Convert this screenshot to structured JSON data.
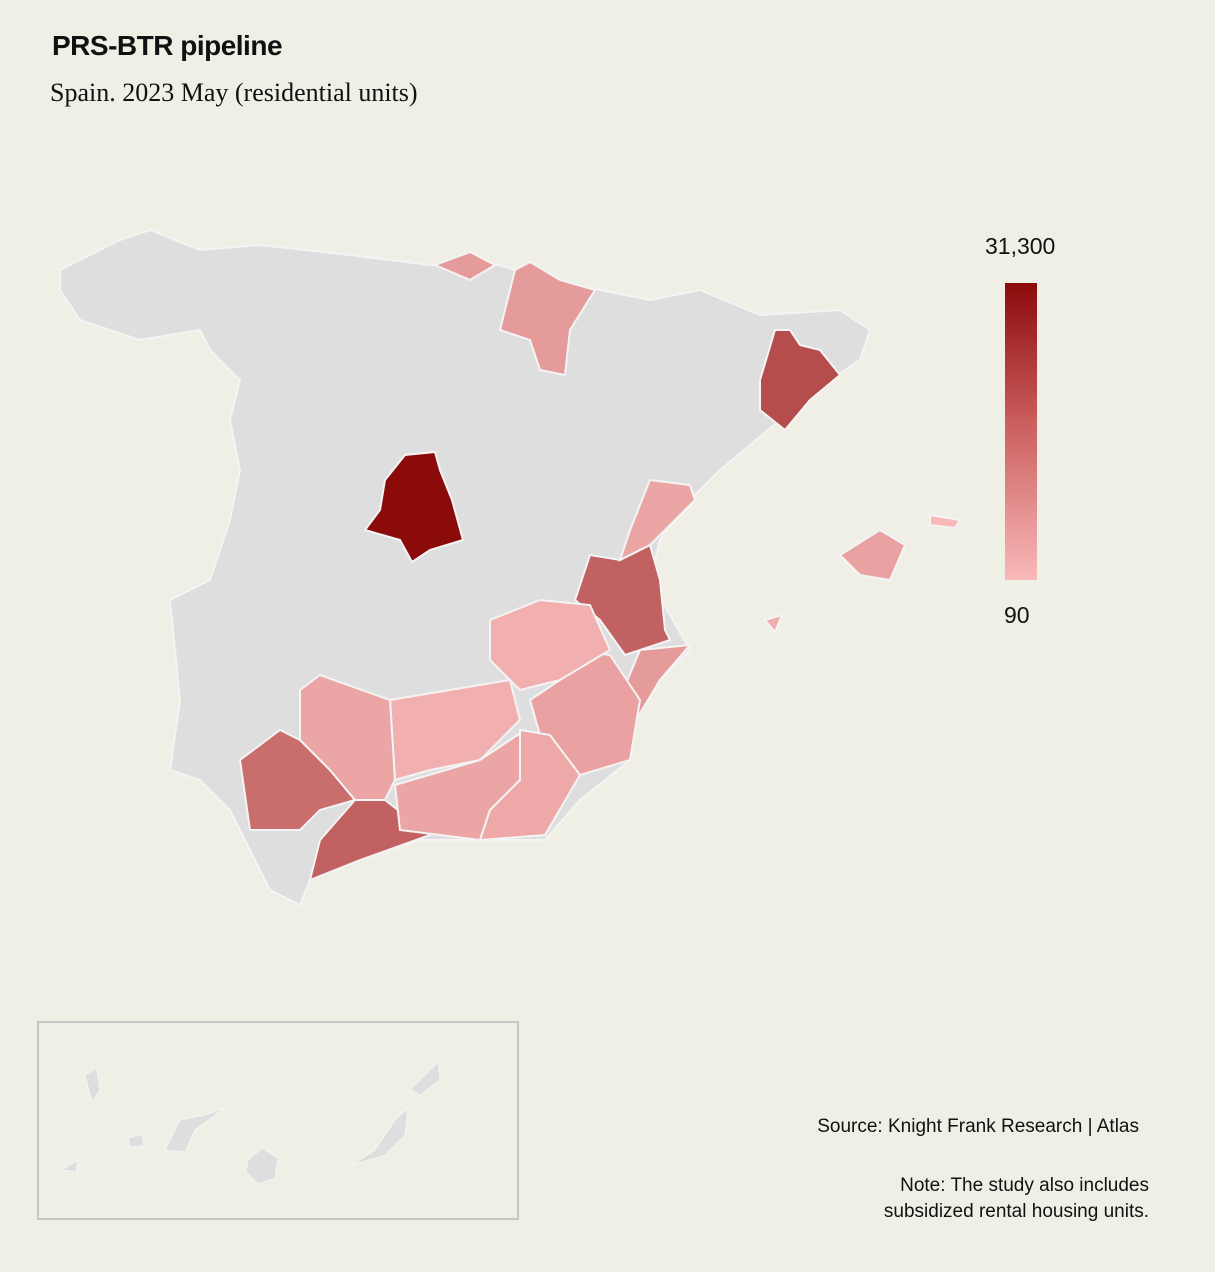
{
  "header": {
    "title": "PRS-BTR pipeline",
    "subtitle": "Spain. 2023 May (residential units)"
  },
  "legend": {
    "max_label": "31,300",
    "min_label": "90",
    "max_color": "#8b0a0a",
    "min_color": "#f9b9b9",
    "no_data_color": "#dedede"
  },
  "footer": {
    "source": "Source: Knight Frank Research | Atlas",
    "note_line1": "Note: The study also includes",
    "note_line2": "subsidized rental housing units."
  },
  "chart_data": {
    "type": "choropleth",
    "title": "PRS-BTR pipeline",
    "subtitle": "Spain. 2023 May (residential units)",
    "range": [
      90,
      31300
    ],
    "regions": [
      {
        "name": "Madrid",
        "value": 31300
      },
      {
        "name": "Barcelona",
        "value": 12000
      },
      {
        "name": "Valencia",
        "value": 8000
      },
      {
        "name": "Málaga",
        "value": 8000
      },
      {
        "name": "Sevilla",
        "value": 6000
      },
      {
        "name": "Navarra",
        "value": 1000
      },
      {
        "name": "Gipuzkoa",
        "value": 1000
      },
      {
        "name": "Castellón",
        "value": 500
      },
      {
        "name": "Alicante",
        "value": 1000
      },
      {
        "name": "Murcia",
        "value": 700
      },
      {
        "name": "Albacete",
        "value": 200
      },
      {
        "name": "Jaén",
        "value": 200
      },
      {
        "name": "Granada",
        "value": 500
      },
      {
        "name": "Almería",
        "value": 400
      },
      {
        "name": "Córdoba",
        "value": 500
      },
      {
        "name": "Mallorca",
        "value": 700
      },
      {
        "name": "Ibiza",
        "value": 300
      },
      {
        "name": "Menorca",
        "value": 90
      }
    ]
  }
}
